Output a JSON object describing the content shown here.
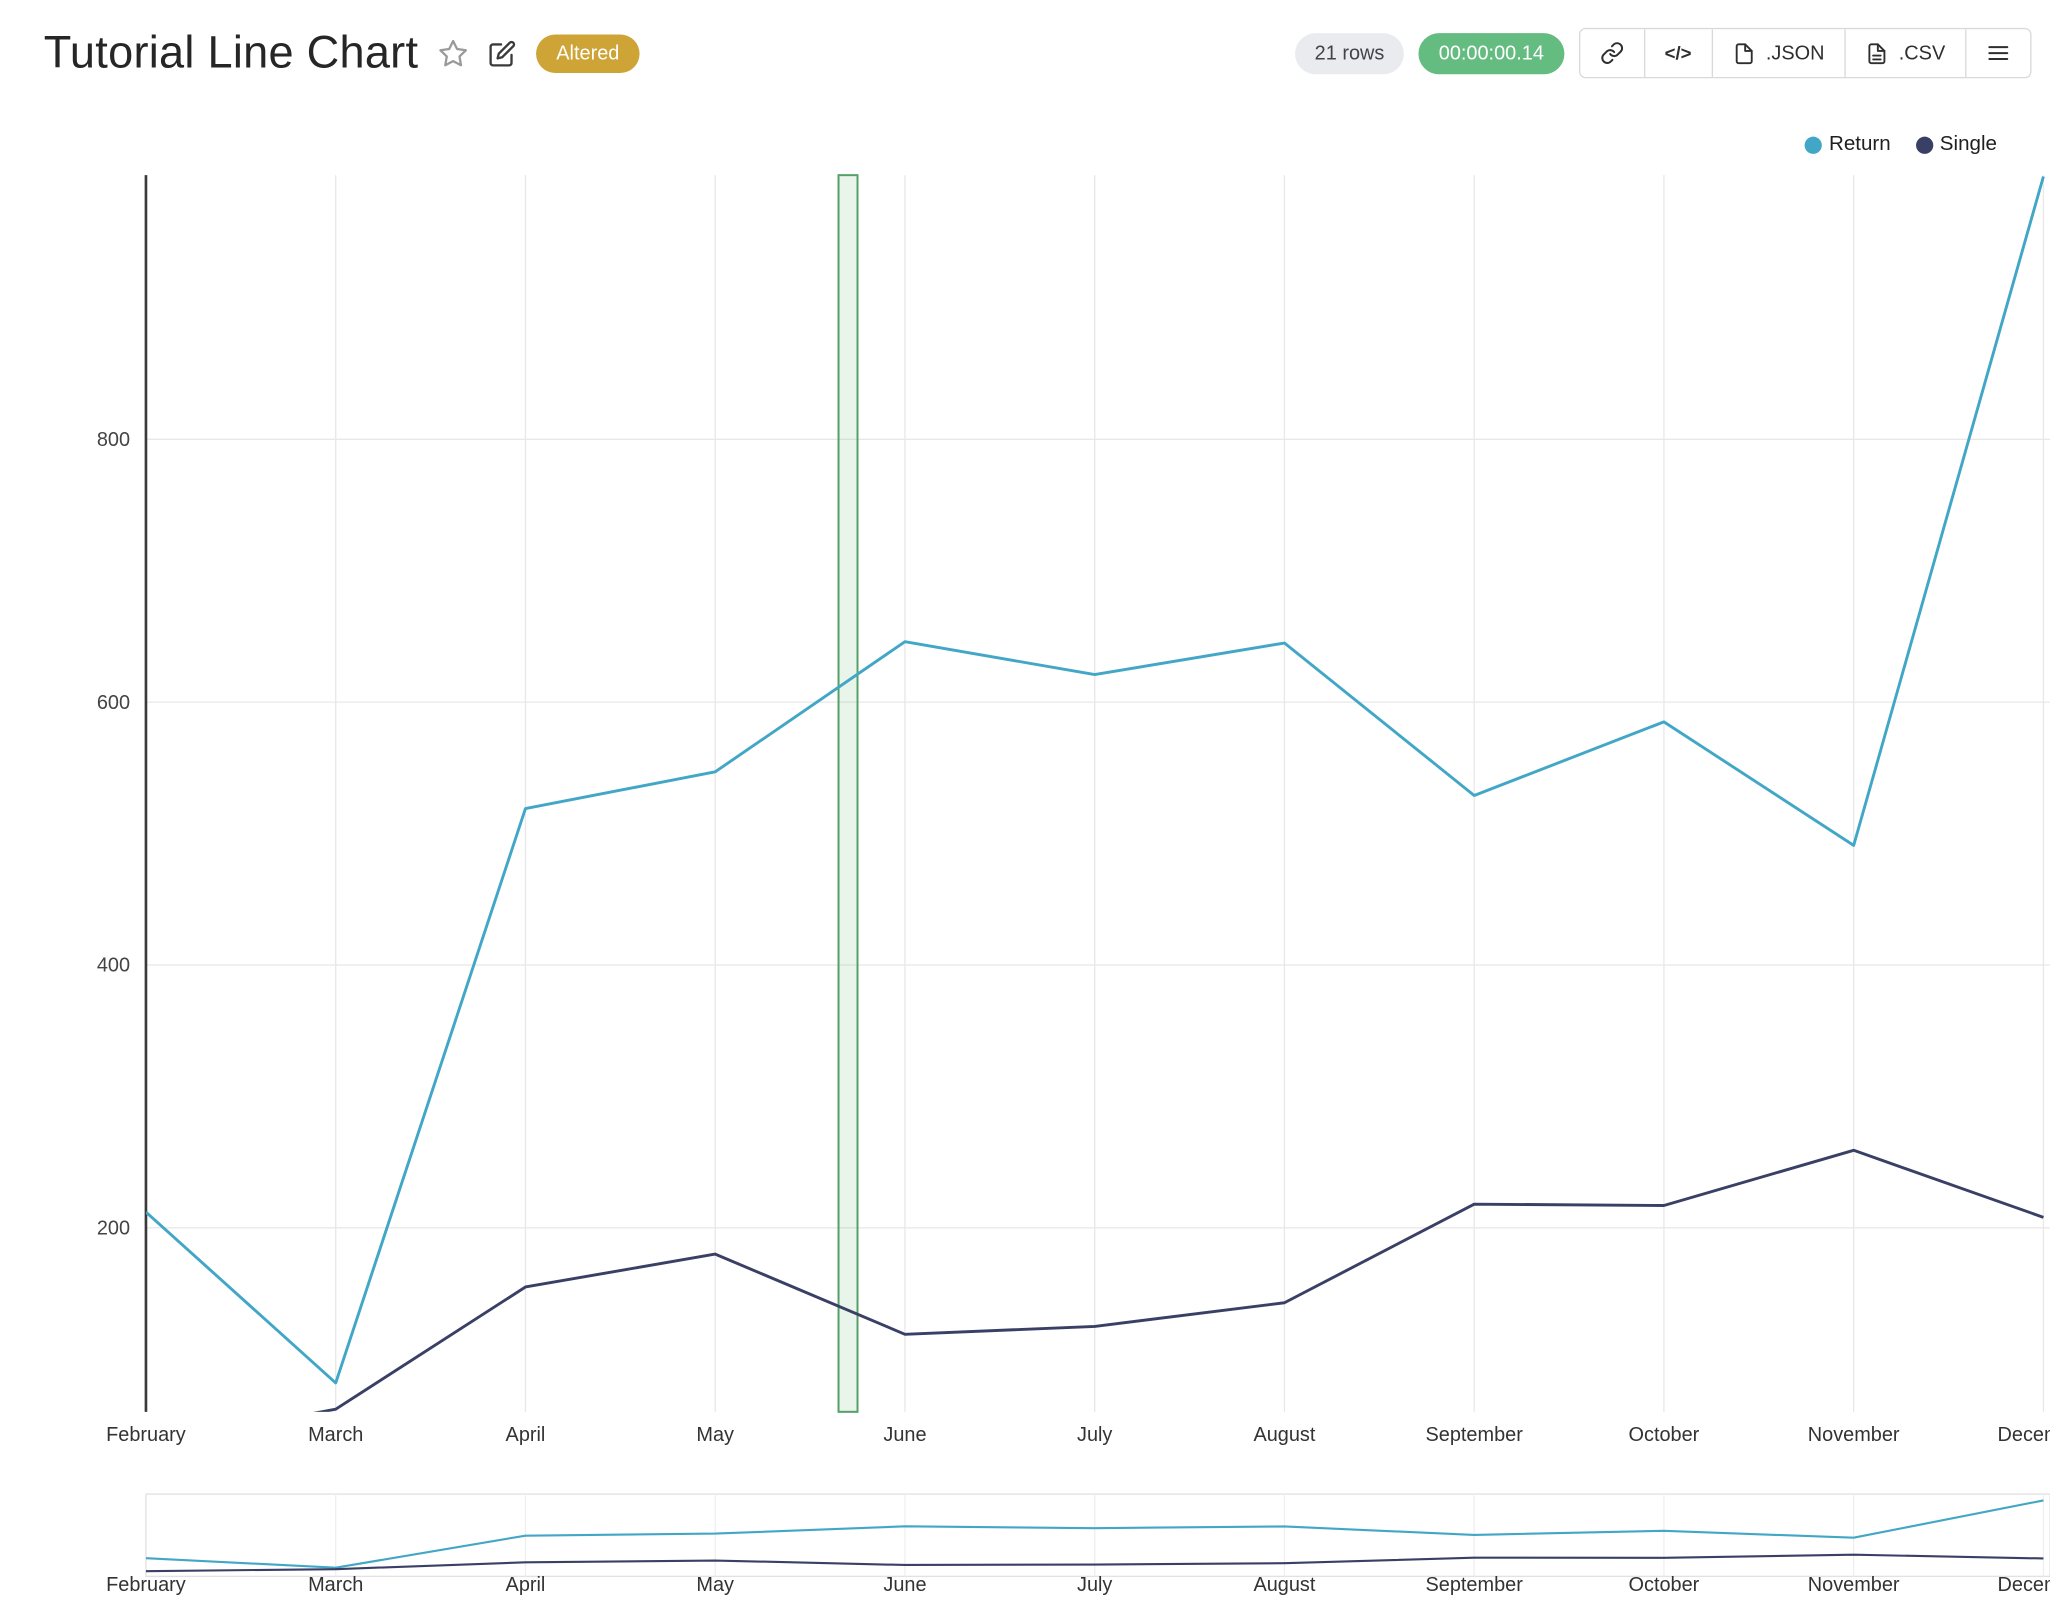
{
  "header": {
    "title": "Tutorial Line Chart",
    "altered_badge": "Altered",
    "rows_badge": "21 rows",
    "timer_badge": "00:00:00.14",
    "embed_icon_glyph": "</>",
    "export_json_label": ".JSON",
    "export_csv_label": ".CSV"
  },
  "colors": {
    "return_line": "#42a7c6",
    "single_line": "#3a4065",
    "altered_badge_bg": "#cda435",
    "timer_badge_bg": "#64bc81",
    "rows_badge_bg": "#e9ebee",
    "selection_band_stroke": "#55a065",
    "gridline": "#e8e8e8",
    "axis_line": "#3a3a3a"
  },
  "chart_data": {
    "type": "line",
    "title": "",
    "xlabel": "",
    "ylabel": "",
    "categories": [
      "February",
      "March",
      "April",
      "May",
      "June",
      "July",
      "August",
      "September",
      "October",
      "November",
      "December"
    ],
    "series": [
      {
        "name": "Return",
        "color": "#42a7c6",
        "values": [
          212,
          82,
          519,
          547,
          646,
          621,
          645,
          529,
          585,
          491,
          1000
        ]
      },
      {
        "name": "Single",
        "color": "#3a4065",
        "values": [
          35,
          62,
          155,
          180,
          119,
          125,
          143,
          218,
          217,
          259,
          208
        ]
      }
    ],
    "yticks": [
      200,
      400,
      600,
      800
    ],
    "ylim": [
      60,
      1001
    ],
    "grid": true,
    "legend_position": "top-right",
    "selection_band": {
      "x0": 3.65,
      "x1": 3.75,
      "color": "#55a065"
    },
    "rangeslider": {
      "enabled": true,
      "ylim": [
        0,
        1050
      ]
    }
  }
}
